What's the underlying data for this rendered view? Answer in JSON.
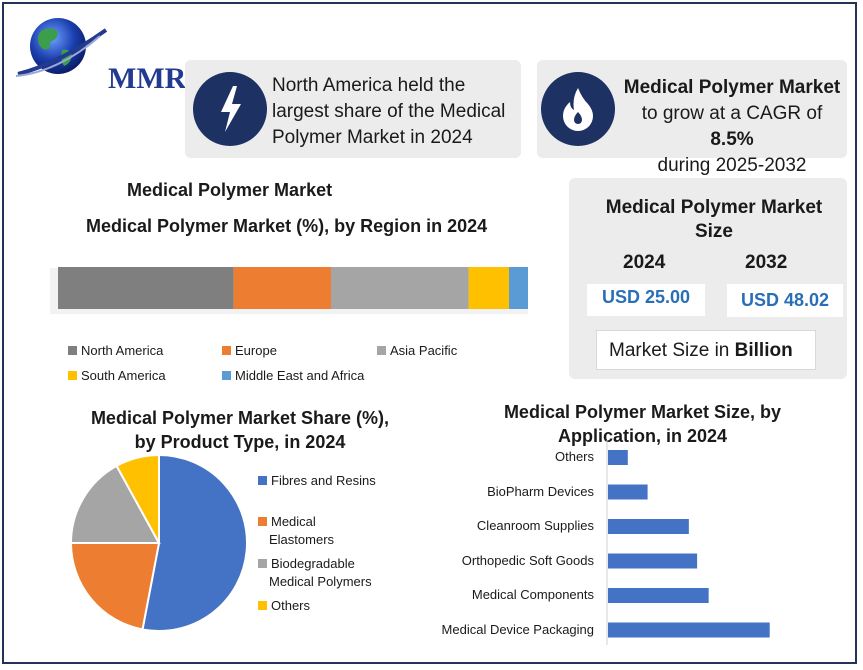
{
  "brand": {
    "logo_text": "MMR"
  },
  "info_cards": {
    "left": {
      "text_lines": [
        "North America held the",
        "largest share of the Medical",
        "Polymer Market in 2024"
      ]
    },
    "right": {
      "line1": "Medical Polymer Market",
      "line2_prefix": "to grow at a CAGR of ",
      "line2_value": "8.5%",
      "line3": "during 2025-2032"
    }
  },
  "market_size": {
    "title_line1": "Medical Polymer Market",
    "title_line2": "Size",
    "year1": "2024",
    "value1": "USD 25.00",
    "year2": "2032",
    "value2": "USD 48.02",
    "unit_prefix": "Market Size in ",
    "unit_value": "Billion"
  },
  "colors": {
    "north_america": "#7f7f7f",
    "europe": "#ed7d31",
    "asia_pacific": "#a5a5a5",
    "south_america": "#ffc000",
    "mea": "#5b9bd5",
    "bar": "#4472c4",
    "pie_fibres": "#4472c4",
    "pie_elastomers": "#ed7d31",
    "pie_bio": "#a5a5a5",
    "pie_others": "#ffc000"
  },
  "chart_data": [
    {
      "type": "bar",
      "orientation": "horizontal-stacked",
      "title": "Medical Polymer Market",
      "subtitle": "Medical Polymer Market  (%), by Region in 2024",
      "series": [
        {
          "name": "North America",
          "values": [
            37
          ]
        },
        {
          "name": "Europe",
          "values": [
            20.5
          ]
        },
        {
          "name": "Asia Pacific",
          "values": [
            29
          ]
        },
        {
          "name": "South America",
          "values": [
            8.5
          ]
        },
        {
          "name": "Middle East and Africa",
          "values": [
            4
          ]
        }
      ],
      "legend_position": "bottom"
    },
    {
      "type": "pie",
      "title": "Medical Polymer Market Share (%),",
      "title_line2": "by Product Type, in 2024",
      "slices": [
        {
          "name": "Fibres and Resins",
          "value": 53
        },
        {
          "name": "Medical Elastomers",
          "value": 22
        },
        {
          "name": "Biodegradable Medical Polymers",
          "value": 17
        },
        {
          "name": "Others",
          "value": 8
        }
      ],
      "legend_labels": [
        [
          "Fibres and Resins"
        ],
        [
          "Medical",
          "Elastomers"
        ],
        [
          "Biodegradable",
          "Medical Polymers"
        ],
        [
          "Others"
        ]
      ],
      "legend_position": "right"
    },
    {
      "type": "bar",
      "orientation": "horizontal",
      "title": "Medical Polymer Market Size, by",
      "title_line2": "Application, in 2024",
      "categories": [
        "Others",
        "BioPharm Devices",
        "Cleanroom Supplies",
        "Orthopedic Soft Goods",
        "Medical Components",
        "Medical Device Packaging"
      ],
      "values": [
        1.2,
        2.4,
        4.9,
        5.4,
        6.1,
        9.8
      ],
      "xlim": [
        0,
        10
      ]
    }
  ]
}
